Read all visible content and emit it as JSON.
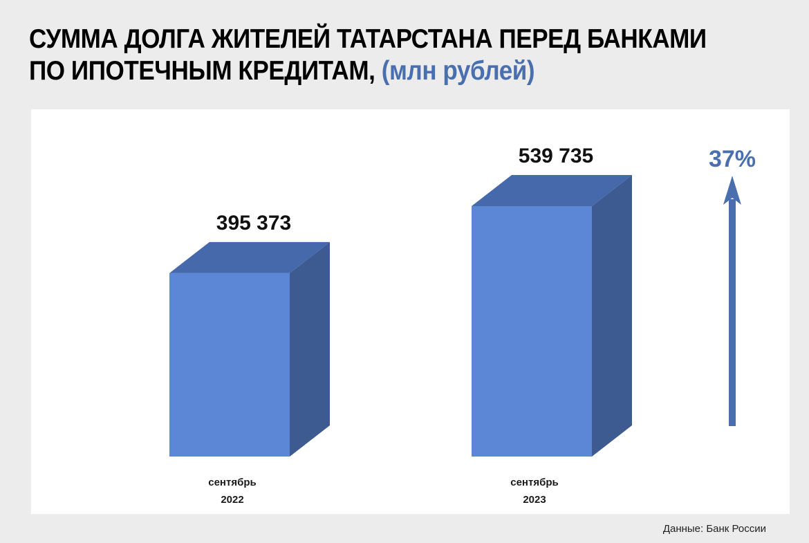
{
  "title": {
    "main": "СУММА ДОЛГА ЖИТЕЛЕЙ ТАТАРСТАНА ПЕРЕД БАНКАМИ ПО ИПОТЕЧНЫМ КРЕДИТАМ,",
    "unit": "(млн рублей)"
  },
  "source": "Данные: Банк России",
  "colors": {
    "bar_front": "#5b87d6",
    "bar_top": "#4669ac",
    "bar_side": "#3d5a91",
    "arrow": "#4a6faf"
  },
  "chart_data": {
    "type": "bar",
    "title": "СУММА ДОЛГА ЖИТЕЛЕЙ ТАТАРСТАНА ПЕРЕД БАНКАМИ ПО ИПОТЕЧНЫМ КРЕДИТАМ, (млн рублей)",
    "categories": [
      [
        "сентябрь",
        "2022"
      ],
      [
        "сентябрь",
        "2023"
      ]
    ],
    "values": [
      395373,
      539735
    ],
    "value_labels": [
      "395 373",
      "539 735"
    ],
    "growth_label": "37%",
    "style": "3d-bars",
    "grid": false,
    "legend": "none"
  }
}
